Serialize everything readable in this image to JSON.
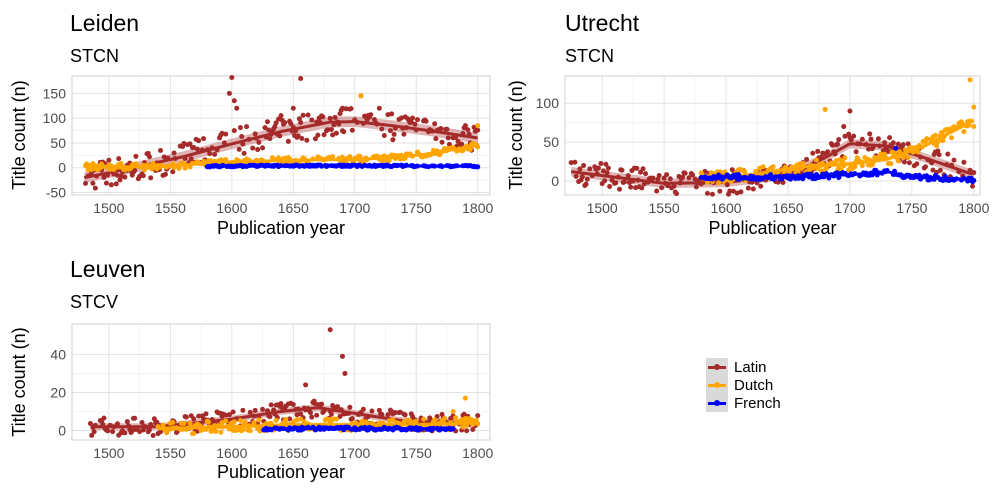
{
  "chart_data": [
    {
      "type": "scatter",
      "title": "Leiden",
      "subtitle": "STCN",
      "xlabel": "Publication year",
      "ylabel": "Title count (n)",
      "xlim": [
        1470,
        1810
      ],
      "ylim": [
        -55,
        185
      ],
      "xticks": [
        1500,
        1550,
        1600,
        1650,
        1700,
        1750,
        1800
      ],
      "yticks": [
        -50,
        0,
        50,
        100,
        150
      ],
      "series": [
        {
          "name": "Latin",
          "color": "#a52a2a",
          "range": [
            1480,
            1800
          ],
          "trend": [
            [
              1480,
              -20
            ],
            [
              1520,
              0
            ],
            [
              1560,
              22
            ],
            [
              1600,
              48
            ],
            [
              1640,
              73
            ],
            [
              1680,
              92
            ],
            [
              1700,
              93
            ],
            [
              1730,
              85
            ],
            [
              1760,
              75
            ],
            [
              1800,
              60
            ]
          ],
          "band": 18,
          "outliers": [
            [
              1600,
              182
            ],
            [
              1598,
              150
            ],
            [
              1602,
              135
            ],
            [
              1604,
              120
            ],
            [
              1656,
              180
            ],
            [
              1650,
              120
            ],
            [
              1705,
              145
            ],
            [
              1690,
              120
            ],
            [
              1720,
              120
            ],
            [
              1640,
              105
            ]
          ]
        },
        {
          "name": "Dutch",
          "color": "#ffa500",
          "range": [
            1480,
            1800
          ],
          "trend": [
            [
              1480,
              2
            ],
            [
              1540,
              2
            ],
            [
              1600,
              12
            ],
            [
              1650,
              15
            ],
            [
              1700,
              17
            ],
            [
              1730,
              20
            ],
            [
              1760,
              28
            ],
            [
              1800,
              45
            ]
          ],
          "band": 4,
          "outliers": [
            [
              1705,
              145
            ],
            [
              1800,
              85
            ]
          ]
        },
        {
          "name": "French",
          "color": "#0000ff",
          "range": [
            1580,
            1800
          ],
          "trend": [
            [
              1580,
              3
            ],
            [
              1650,
              4
            ],
            [
              1700,
              4
            ],
            [
              1800,
              3
            ]
          ],
          "band": 1,
          "outliers": []
        }
      ]
    },
    {
      "type": "scatter",
      "title": "Utrecht",
      "subtitle": "STCN",
      "xlabel": "Publication year",
      "ylabel": "Title count (n)",
      "xlim": [
        1470,
        1805
      ],
      "ylim": [
        -18,
        135
      ],
      "xticks": [
        1500,
        1550,
        1600,
        1650,
        1700,
        1750,
        1800
      ],
      "yticks": [
        0,
        50,
        100
      ],
      "series": [
        {
          "name": "Latin",
          "color": "#a52a2a",
          "range": [
            1475,
            1800
          ],
          "trend": [
            [
              1475,
              12
            ],
            [
              1510,
              5
            ],
            [
              1550,
              -3
            ],
            [
              1600,
              -2
            ],
            [
              1650,
              8
            ],
            [
              1680,
              30
            ],
            [
              1700,
              48
            ],
            [
              1730,
              45
            ],
            [
              1760,
              30
            ],
            [
              1800,
              8
            ]
          ],
          "band": 10,
          "outliers": [
            [
              1700,
              90
            ],
            [
              1695,
              70
            ]
          ]
        },
        {
          "name": "Dutch",
          "color": "#ffa500",
          "range": [
            1580,
            1800
          ],
          "trend": [
            [
              1580,
              3
            ],
            [
              1620,
              8
            ],
            [
              1660,
              18
            ],
            [
              1700,
              22
            ],
            [
              1730,
              28
            ],
            [
              1760,
              45
            ],
            [
              1800,
              78
            ]
          ],
          "band": 5,
          "outliers": [
            [
              1797,
              130
            ],
            [
              1680,
              92
            ],
            [
              1800,
              95
            ]
          ]
        },
        {
          "name": "French",
          "color": "#0000ff",
          "range": [
            1580,
            1800
          ],
          "trend": [
            [
              1580,
              5
            ],
            [
              1650,
              5
            ],
            [
              1700,
              8
            ],
            [
              1730,
              12
            ],
            [
              1750,
              5
            ],
            [
              1800,
              2
            ]
          ],
          "band": 2,
          "outliers": [
            [
              1737,
              42
            ]
          ]
        }
      ]
    },
    {
      "type": "scatter",
      "title": "Leuven",
      "subtitle": "STCV",
      "xlabel": "Publication year",
      "ylabel": "Title count (n)",
      "xlim": [
        1470,
        1810
      ],
      "ylim": [
        -5,
        56
      ],
      "xticks": [
        1500,
        1550,
        1600,
        1650,
        1700,
        1750,
        1800
      ],
      "yticks": [
        0,
        20,
        40
      ],
      "series": [
        {
          "name": "Latin",
          "color": "#a52a2a",
          "range": [
            1485,
            1800
          ],
          "trend": [
            [
              1485,
              2
            ],
            [
              1540,
              2
            ],
            [
              1600,
              6
            ],
            [
              1640,
              10
            ],
            [
              1670,
              12
            ],
            [
              1700,
              9
            ],
            [
              1740,
              5
            ],
            [
              1800,
              4
            ]
          ],
          "band": 3,
          "outliers": [
            [
              1680,
              53
            ],
            [
              1690,
              39
            ],
            [
              1692,
              30
            ],
            [
              1660,
              24
            ]
          ]
        },
        {
          "name": "Dutch",
          "color": "#ffa500",
          "range": [
            1540,
            1800
          ],
          "trend": [
            [
              1540,
              1
            ],
            [
              1600,
              2
            ],
            [
              1650,
              3
            ],
            [
              1700,
              3
            ],
            [
              1750,
              3
            ],
            [
              1800,
              4
            ]
          ],
          "band": 2,
          "outliers": [
            [
              1790,
              17
            ],
            [
              1780,
              10
            ]
          ]
        },
        {
          "name": "French",
          "color": "#0000ff",
          "range": [
            1625,
            1780
          ],
          "trend": [
            [
              1625,
              1
            ],
            [
              1700,
              1
            ],
            [
              1780,
              1
            ]
          ],
          "band": 0.5,
          "outliers": []
        }
      ]
    }
  ],
  "legend": {
    "items": [
      {
        "label": "Latin",
        "color": "#a52a2a"
      },
      {
        "label": "Dutch",
        "color": "#ffa500"
      },
      {
        "label": "French",
        "color": "#0000ff"
      }
    ]
  }
}
